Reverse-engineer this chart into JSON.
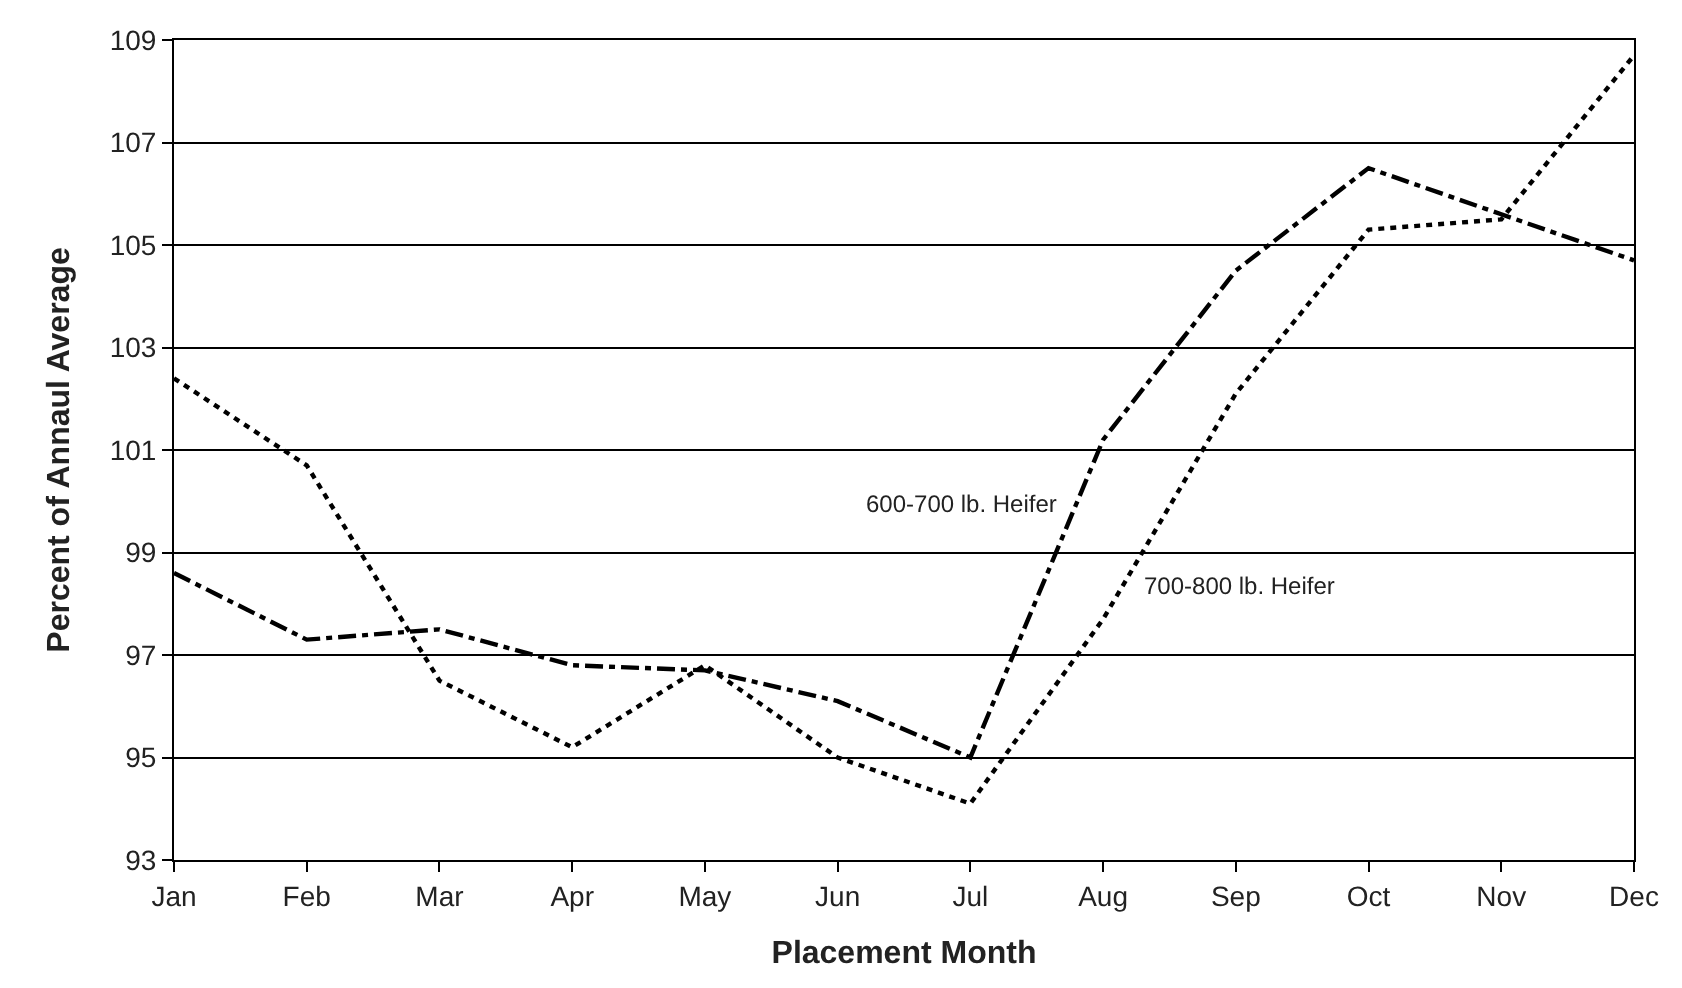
{
  "chart_data": {
    "type": "line",
    "xlabel": "Placement Month",
    "ylabel": "Percent of Annaul Average",
    "categories": [
      "Jan",
      "Feb",
      "Mar",
      "Apr",
      "May",
      "Jun",
      "Jul",
      "Aug",
      "Sep",
      "Oct",
      "Nov",
      "Dec"
    ],
    "series": [
      {
        "name": "600-700 lb. Heifer",
        "color": "#000000",
        "line_style": "dashdot",
        "values": [
          98.6,
          97.3,
          97.5,
          96.8,
          96.7,
          96.1,
          95.0,
          101.2,
          104.5,
          106.5,
          105.6,
          104.7
        ]
      },
      {
        "name": "700-800 lb. Heifer",
        "color": "#000000",
        "line_style": "dotted",
        "values": [
          102.4,
          100.7,
          96.5,
          95.2,
          96.8,
          95.0,
          94.1,
          97.7,
          102.1,
          105.3,
          105.5,
          108.7
        ]
      }
    ],
    "ylim": [
      93,
      109
    ],
    "yticks": [
      93,
      95,
      97,
      99,
      101,
      103,
      105,
      107,
      109
    ],
    "grid": "y",
    "legend": false,
    "marker": "none"
  }
}
